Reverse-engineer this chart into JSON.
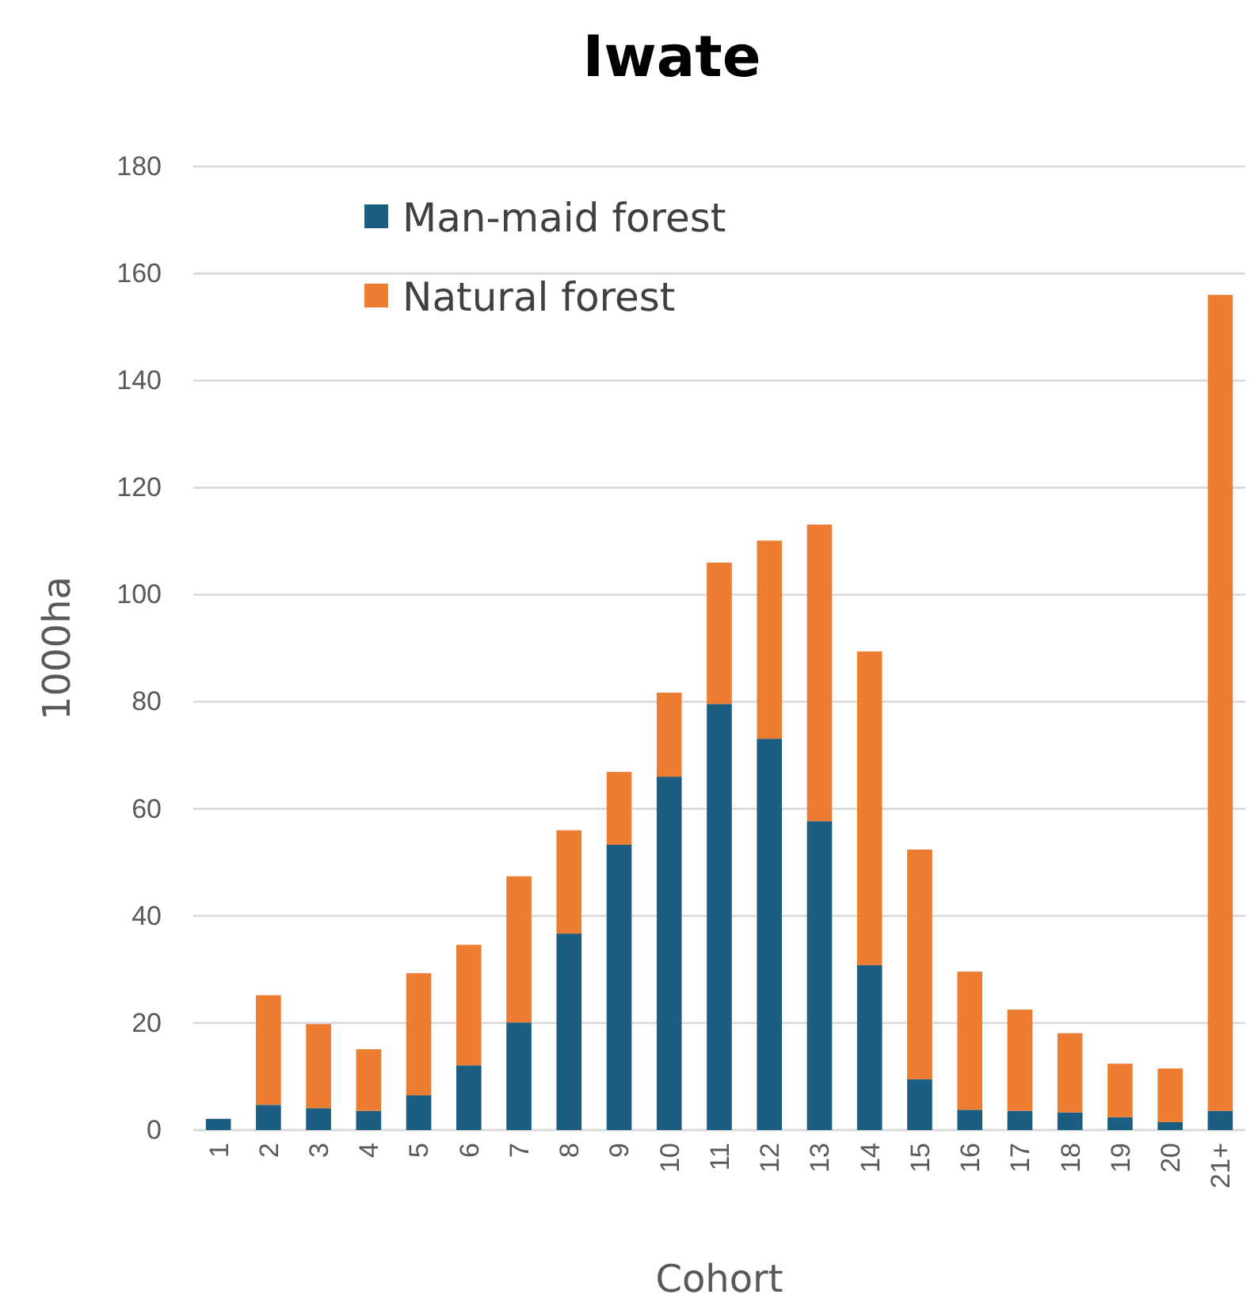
{
  "chart_data": {
    "type": "bar",
    "title": "Iwate",
    "xlabel": "Cohort",
    "ylabel": "1000ha",
    "categories": [
      "1",
      "2",
      "3",
      "4",
      "5",
      "6",
      "7",
      "8",
      "9",
      "10",
      "11",
      "12",
      "13",
      "14",
      "15",
      "16",
      "17",
      "18",
      "19",
      "20",
      "21+"
    ],
    "stacked": true,
    "series": [
      {
        "name": "Man-maid forest",
        "color": "#1b5e82",
        "values": [
          2.1,
          4.7,
          4.1,
          3.6,
          6.5,
          12.1,
          20.1,
          36.7,
          53.3,
          66,
          79.6,
          73.1,
          57.7,
          30.8,
          9.5,
          3.8,
          3.6,
          3.3,
          2.4,
          1.5,
          3.6
        ]
      },
      {
        "name": "Natural forest",
        "color": "#ed7d31",
        "values": [
          0,
          20.5,
          15.7,
          11.5,
          22.8,
          22.5,
          27.3,
          19.3,
          13.6,
          15.7,
          26.4,
          37,
          55.4,
          58.6,
          42.9,
          25.8,
          18.9,
          14.8,
          10,
          10,
          152.4
        ]
      }
    ],
    "ylim": [
      0,
      180
    ],
    "yticks": [
      0,
      20,
      40,
      60,
      80,
      100,
      120,
      140,
      160,
      180
    ],
    "grid": "y",
    "legend": "top left"
  }
}
